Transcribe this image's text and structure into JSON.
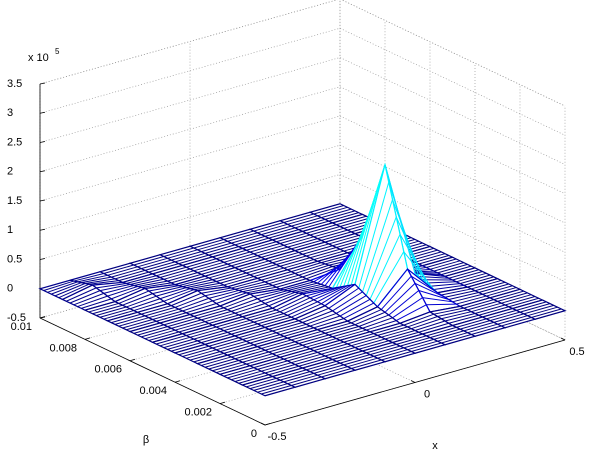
{
  "chart_data": {
    "type": "mesh3d",
    "colormap": "jet",
    "grid": true,
    "zscale": {
      "base": "x 10",
      "exponent": "5"
    },
    "xlabel": "x",
    "ylabel": "β",
    "x": [
      -0.5,
      -0.4,
      -0.3,
      -0.2,
      -0.1,
      0,
      0.1,
      0.2,
      0.3,
      0.4,
      0.5
    ],
    "y": [
      0,
      0.001,
      0.002,
      0.003,
      0.004,
      0.005,
      0.006,
      0.007,
      0.008,
      0.009,
      0.01
    ],
    "z": [
      [
        0,
        0,
        0,
        0,
        0,
        0,
        0,
        0,
        0,
        0,
        0
      ],
      [
        0,
        0,
        0,
        0,
        0,
        0,
        0,
        0,
        0,
        0,
        0
      ],
      [
        0,
        0,
        0,
        0,
        0,
        0,
        0,
        0.05,
        0,
        0,
        0
      ],
      [
        0,
        0,
        0,
        0,
        0,
        0,
        0.1,
        0.6,
        0.05,
        0,
        0
      ],
      [
        0,
        0,
        0,
        0,
        0,
        0.08,
        0.3,
        2.2,
        0.2,
        0,
        0
      ],
      [
        0,
        0,
        0,
        0,
        0,
        0.1,
        0.05,
        0.8,
        0.05,
        0,
        0
      ],
      [
        0,
        0,
        0,
        0,
        0.06,
        0,
        0,
        0.05,
        0,
        0,
        0
      ],
      [
        0,
        0,
        0,
        0.08,
        0,
        0,
        0,
        0,
        0,
        0,
        0
      ],
      [
        0,
        0,
        0.08,
        0,
        0,
        0,
        0,
        0,
        0,
        0,
        0
      ],
      [
        0,
        0.1,
        0,
        0,
        0,
        0,
        0,
        0,
        0,
        0,
        0
      ],
      [
        0,
        0,
        0,
        0,
        0,
        0,
        0,
        0,
        0,
        0,
        0
      ]
    ],
    "xlim": [
      -0.5,
      0.5
    ],
    "ylim": [
      0,
      0.01
    ],
    "zlim": [
      -0.5,
      3.5
    ],
    "xticks": [
      -0.5,
      0,
      0.5
    ],
    "yticks": [
      0,
      0.002,
      0.004,
      0.006,
      0.008,
      0.01
    ],
    "zticks": [
      -0.5,
      0,
      0.5,
      1,
      1.5,
      2,
      2.5,
      3,
      3.5
    ]
  }
}
